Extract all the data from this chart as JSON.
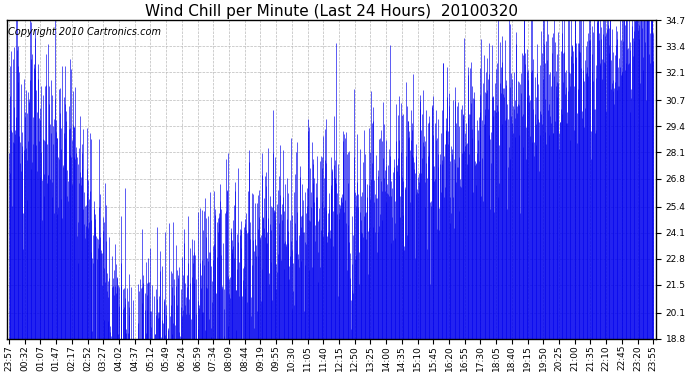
{
  "title": "Wind Chill per Minute (Last 24 Hours)  20100320",
  "copyright_text": "Copyright 2010 Cartronics.com",
  "bar_color": "#0000EE",
  "background_color": "#FFFFFF",
  "plot_bg_color": "#FFFFFF",
  "ylim": [
    18.8,
    34.7
  ],
  "yticks": [
    18.8,
    20.1,
    21.5,
    22.8,
    24.1,
    25.4,
    26.8,
    28.1,
    29.4,
    30.7,
    32.1,
    33.4,
    34.7
  ],
  "xtick_labels": [
    "23:57",
    "00:32",
    "01:07",
    "01:47",
    "02:17",
    "02:52",
    "03:27",
    "04:02",
    "04:37",
    "05:12",
    "05:49",
    "06:24",
    "06:59",
    "07:34",
    "08:09",
    "08:44",
    "09:19",
    "09:55",
    "10:30",
    "11:05",
    "11:40",
    "12:15",
    "12:50",
    "13:25",
    "14:00",
    "14:35",
    "15:10",
    "15:45",
    "16:20",
    "16:55",
    "17:30",
    "18:05",
    "18:40",
    "19:15",
    "19:50",
    "20:25",
    "21:00",
    "21:35",
    "22:10",
    "22:45",
    "23:20",
    "23:55"
  ],
  "grid_color": "#BBBBBB",
  "grid_linestyle": "--",
  "title_fontsize": 11,
  "tick_fontsize": 6.5,
  "copyright_fontsize": 7
}
